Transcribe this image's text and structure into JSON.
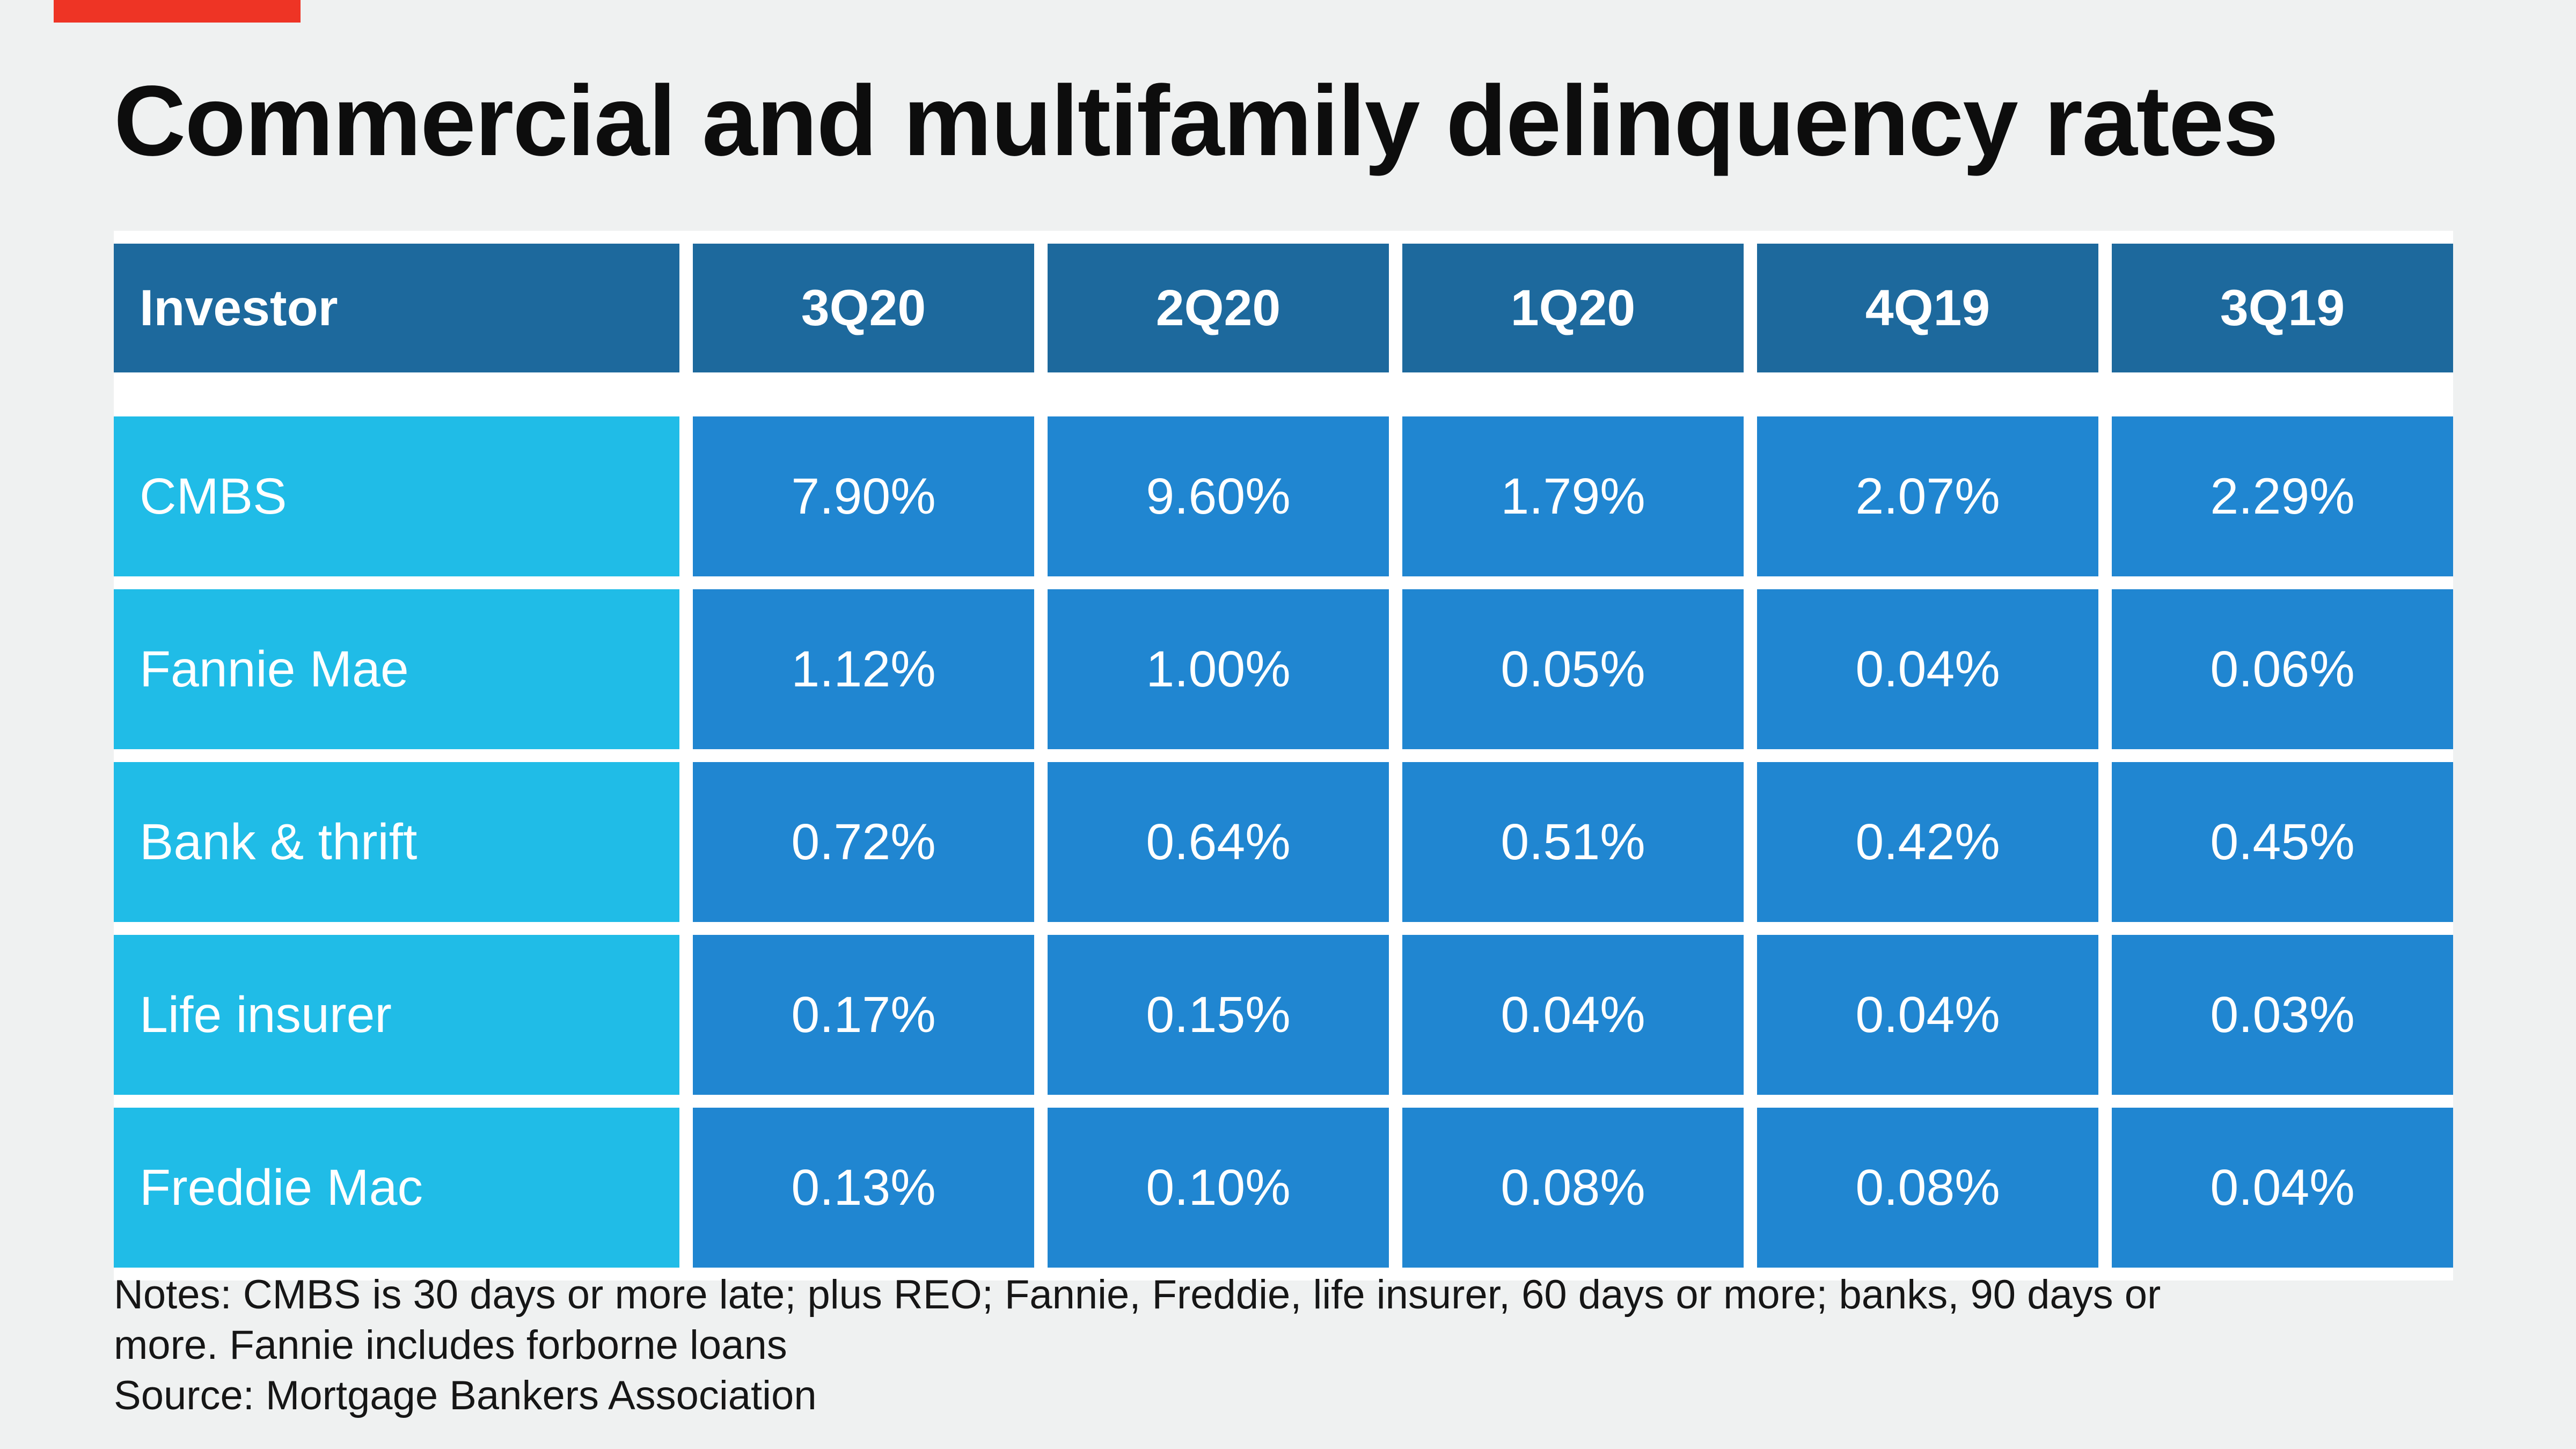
{
  "title": "Commercial and multifamily delinquency rates",
  "table": {
    "columns": [
      "Investor",
      "3Q20",
      "2Q20",
      "1Q20",
      "4Q19",
      "3Q19"
    ],
    "rows": [
      {
        "investor": "CMBS",
        "values": [
          "7.90%",
          "9.60%",
          "1.79%",
          "2.07%",
          "2.29%"
        ]
      },
      {
        "investor": "Fannie Mae",
        "values": [
          "1.12%",
          "1.00%",
          "0.05%",
          "0.04%",
          "0.06%"
        ]
      },
      {
        "investor": "Bank & thrift",
        "values": [
          "0.72%",
          "0.64%",
          "0.51%",
          "0.42%",
          "0.45%"
        ]
      },
      {
        "investor": "Life insurer",
        "values": [
          "0.17%",
          "0.15%",
          "0.04%",
          "0.04%",
          "0.03%"
        ]
      },
      {
        "investor": "Freddie Mac",
        "values": [
          "0.13%",
          "0.10%",
          "0.08%",
          "0.08%",
          "0.04%"
        ]
      }
    ]
  },
  "notes": {
    "line1": "Notes: CMBS is 30 days or more late; plus REO; Fannie, Freddie, life insurer, 60 days or more; banks, 90 days or",
    "line2": "more. Fannie includes forborne loans",
    "source": "Source: Mortgage Bankers Association"
  },
  "colors": {
    "bg": "#eff1f1",
    "header-blue": "#1d699d",
    "label-cyan": "#20bce7",
    "value-blue": "#2086d1",
    "accent-red": "#ee3425",
    "frame-white": "#ffffff",
    "title-color": "#0d0d0d",
    "note-color": "#161616",
    "cell-text": "#ffffff"
  },
  "chart_data": {
    "type": "table",
    "title": "Commercial and multifamily delinquency rates",
    "columns": [
      "Investor",
      "3Q20",
      "2Q20",
      "1Q20",
      "4Q19",
      "3Q19"
    ],
    "rows": [
      [
        "CMBS",
        "7.90%",
        "9.60%",
        "1.79%",
        "2.07%",
        "2.29%"
      ],
      [
        "Fannie Mae",
        "1.12%",
        "1.00%",
        "0.05%",
        "0.04%",
        "0.06%"
      ],
      [
        "Bank & thrift",
        "0.72%",
        "0.64%",
        "0.51%",
        "0.42%",
        "0.45%"
      ],
      [
        "Life insurer",
        "0.17%",
        "0.15%",
        "0.04%",
        "0.04%",
        "0.03%"
      ],
      [
        "Freddie Mac",
        "0.13%",
        "0.10%",
        "0.08%",
        "0.08%",
        "0.04%"
      ]
    ],
    "notes": "Notes: CMBS is 30 days or more late; plus REO; Fannie, Freddie, life insurer, 60 days or more; banks, 90 days or more. Fannie includes forborne loans",
    "source": "Source: Mortgage Bankers Association"
  }
}
